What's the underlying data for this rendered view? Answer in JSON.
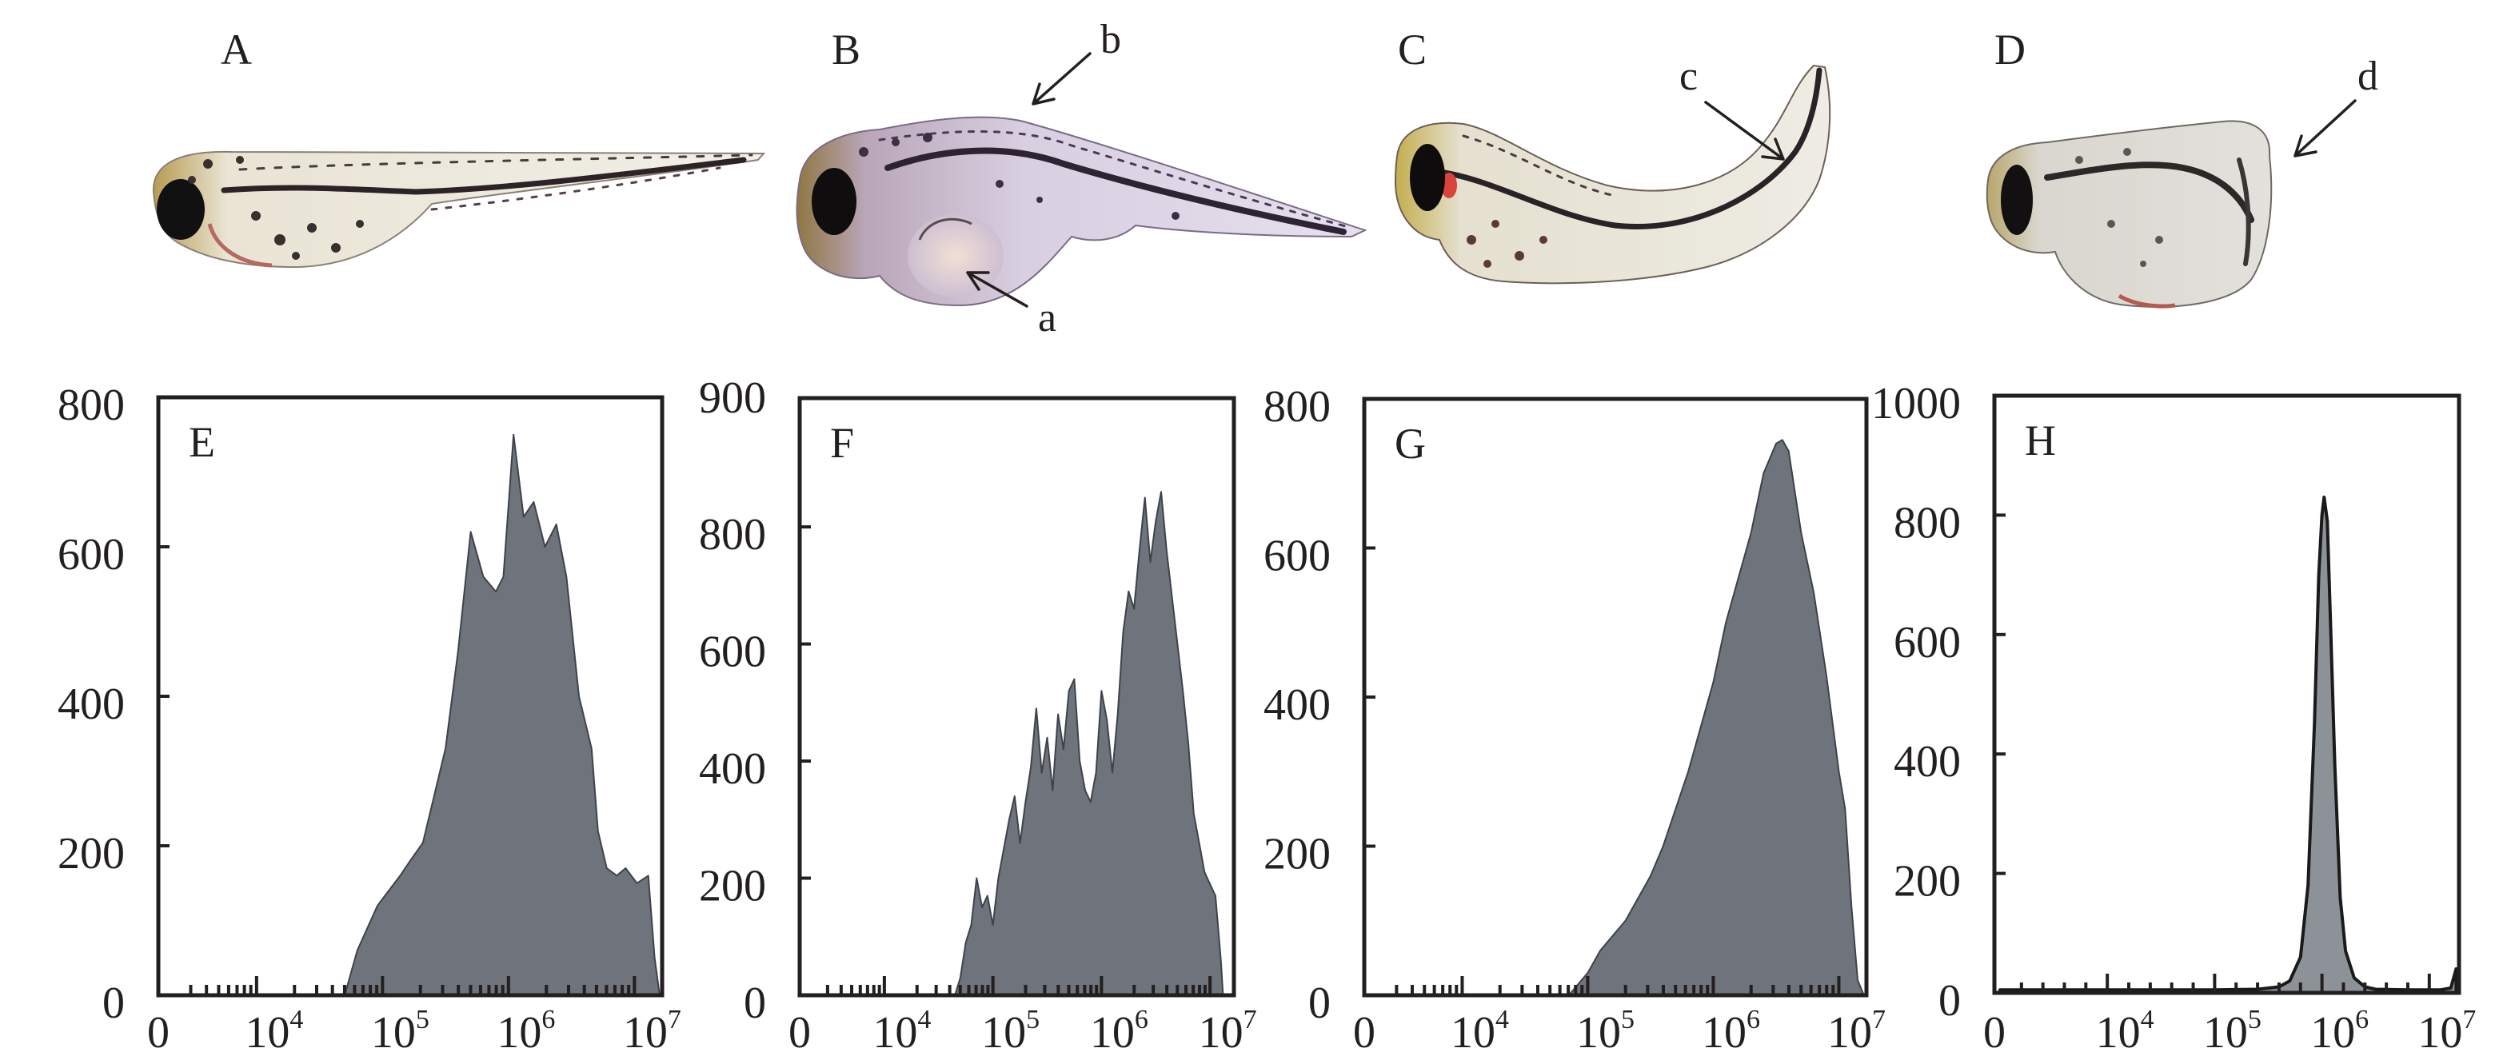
{
  "photos": [
    {
      "panel": "A",
      "annotations": []
    },
    {
      "panel": "B",
      "annotations": [
        {
          "label": "b"
        },
        {
          "label": "a"
        }
      ]
    },
    {
      "panel": "C",
      "annotations": [
        {
          "label": "c"
        }
      ]
    },
    {
      "panel": "D",
      "annotations": [
        {
          "label": "d"
        }
      ]
    }
  ],
  "colors": {
    "text": "#231f20",
    "hist_fill": "#6e737c",
    "hist_edge": "#3e434b",
    "peak_fill": "#8d9299",
    "peak_edge": "#1a1a1a"
  },
  "chart_data": [
    {
      "panel": "E",
      "type": "area",
      "title": "E",
      "xlabel": "",
      "ylabel": "",
      "xscale": "log",
      "grid": false,
      "xticks": [
        0,
        10000,
        100000,
        1000000,
        10000000
      ],
      "xtick_labels": [
        {
          "base": "0",
          "exp": ""
        },
        {
          "base": "10",
          "exp": "4"
        },
        {
          "base": "10",
          "exp": "5"
        },
        {
          "base": "10",
          "exp": "6"
        },
        {
          "base": "10",
          "exp": "7"
        }
      ],
      "ylim": [
        0,
        800
      ],
      "yticks": [
        0,
        200,
        400,
        600,
        800
      ],
      "ytick_labels": [
        "0",
        "200",
        "400",
        "600",
        "800"
      ],
      "top_label": "",
      "x_log10": [
        4.7,
        4.8,
        4.96,
        5.05,
        5.14,
        5.22,
        5.32,
        5.4,
        5.5,
        5.6,
        5.7,
        5.8,
        5.9,
        5.96,
        6.04,
        6.12,
        6.2,
        6.29,
        6.38,
        6.46,
        6.56,
        6.66,
        6.71,
        6.78,
        6.86,
        6.93,
        7.02,
        7.11,
        7.16,
        7.2
      ],
      "counts": [
        0,
        60,
        120,
        140,
        160,
        180,
        204,
        260,
        330,
        460,
        620,
        560,
        540,
        560,
        750,
        640,
        660,
        600,
        630,
        560,
        400,
        330,
        220,
        170,
        160,
        170,
        150,
        160,
        50,
        0
      ]
    },
    {
      "panel": "F",
      "type": "area",
      "title": "F",
      "xlabel": "",
      "ylabel": "",
      "xscale": "log",
      "grid": false,
      "xticks": [
        0,
        10000,
        100000,
        1000000,
        10000000
      ],
      "xtick_labels": [
        {
          "base": "0",
          "exp": ""
        },
        {
          "base": "10",
          "exp": "4"
        },
        {
          "base": "10",
          "exp": "5"
        },
        {
          "base": "10",
          "exp": "6"
        },
        {
          "base": "10",
          "exp": "7"
        }
      ],
      "ylim": [
        0,
        1020
      ],
      "yticks": [
        0,
        200,
        400,
        600,
        800
      ],
      "ytick_labels": [
        "0",
        "200",
        "400",
        "600",
        "800"
      ],
      "top_label": "900",
      "x_log10": [
        4.65,
        4.7,
        4.75,
        4.8,
        4.85,
        4.9,
        4.95,
        5.0,
        5.05,
        5.1,
        5.15,
        5.2,
        5.25,
        5.3,
        5.35,
        5.4,
        5.45,
        5.5,
        5.55,
        5.6,
        5.65,
        5.7,
        5.75,
        5.8,
        5.85,
        5.9,
        5.95,
        6.0,
        6.05,
        6.1,
        6.15,
        6.2,
        6.25,
        6.3,
        6.35,
        6.4,
        6.45,
        6.5,
        6.55,
        6.6,
        6.65,
        6.7,
        6.75,
        6.8,
        6.85,
        6.9,
        6.95,
        7.0,
        7.05,
        7.1,
        7.12
      ],
      "counts": [
        0,
        30,
        90,
        120,
        200,
        150,
        170,
        120,
        200,
        250,
        300,
        340,
        260,
        330,
        390,
        490,
        380,
        440,
        350,
        480,
        420,
        520,
        540,
        400,
        350,
        330,
        380,
        520,
        470,
        380,
        480,
        620,
        690,
        660,
        760,
        850,
        740,
        810,
        860,
        760,
        680,
        600,
        520,
        430,
        310,
        260,
        210,
        190,
        170,
        60,
        0
      ]
    },
    {
      "panel": "G",
      "type": "area",
      "title": "G",
      "xlabel": "",
      "ylabel": "",
      "xscale": "log",
      "grid": false,
      "xticks": [
        0,
        10000,
        100000,
        1000000,
        10000000
      ],
      "xtick_labels": [
        {
          "base": "0",
          "exp": ""
        },
        {
          "base": "10",
          "exp": "4"
        },
        {
          "base": "10",
          "exp": "5"
        },
        {
          "base": "10",
          "exp": "6"
        },
        {
          "base": "10",
          "exp": "7"
        }
      ],
      "ylim": [
        0,
        800
      ],
      "yticks": [
        0,
        200,
        400,
        600,
        800
      ],
      "ytick_labels": [
        "0",
        "200",
        "400",
        "600",
        "800"
      ],
      "top_label": "",
      "x_log10": [
        4.85,
        4.95,
        5.0,
        5.1,
        5.2,
        5.3,
        5.4,
        5.5,
        5.6,
        5.7,
        5.8,
        5.9,
        6.0,
        6.1,
        6.2,
        6.3,
        6.4,
        6.5,
        6.55,
        6.6,
        6.7,
        6.8,
        6.9,
        7.0,
        7.05,
        7.1,
        7.15,
        7.2
      ],
      "counts": [
        0,
        20,
        30,
        60,
        80,
        100,
        130,
        160,
        200,
        250,
        300,
        360,
        420,
        500,
        560,
        620,
        700,
        740,
        745,
        730,
        620,
        540,
        430,
        300,
        250,
        120,
        20,
        0
      ]
    },
    {
      "panel": "H",
      "type": "area",
      "title": "H",
      "xlabel": "",
      "ylabel": "",
      "xscale": "log",
      "grid": false,
      "xticks": [
        0,
        10000,
        100000,
        1000000,
        10000000
      ],
      "xtick_labels": [
        {
          "base": "0",
          "exp": ""
        },
        {
          "base": "10",
          "exp": "4"
        },
        {
          "base": "10",
          "exp": "5"
        },
        {
          "base": "10",
          "exp": "6"
        },
        {
          "base": "10",
          "exp": "7"
        }
      ],
      "ylim": [
        0,
        1000
      ],
      "yticks": [
        0,
        200,
        400,
        600,
        800,
        1000
      ],
      "ytick_labels": [
        "0",
        "200",
        "400",
        "600",
        "800",
        "1000"
      ],
      "top_label": "",
      "x_log10": [
        3.0,
        3.5,
        4.0,
        4.5,
        5.0,
        5.4,
        5.6,
        5.7,
        5.8,
        5.87,
        5.93,
        5.97,
        6.0,
        6.02,
        6.05,
        6.08,
        6.12,
        6.17,
        6.22,
        6.3,
        6.4,
        6.5,
        6.8,
        7.1,
        7.2,
        7.25
      ],
      "counts": [
        5,
        5,
        5,
        5,
        5,
        6,
        10,
        20,
        60,
        180,
        450,
        700,
        800,
        830,
        790,
        620,
        380,
        160,
        70,
        25,
        10,
        6,
        5,
        5,
        8,
        40
      ]
    }
  ]
}
